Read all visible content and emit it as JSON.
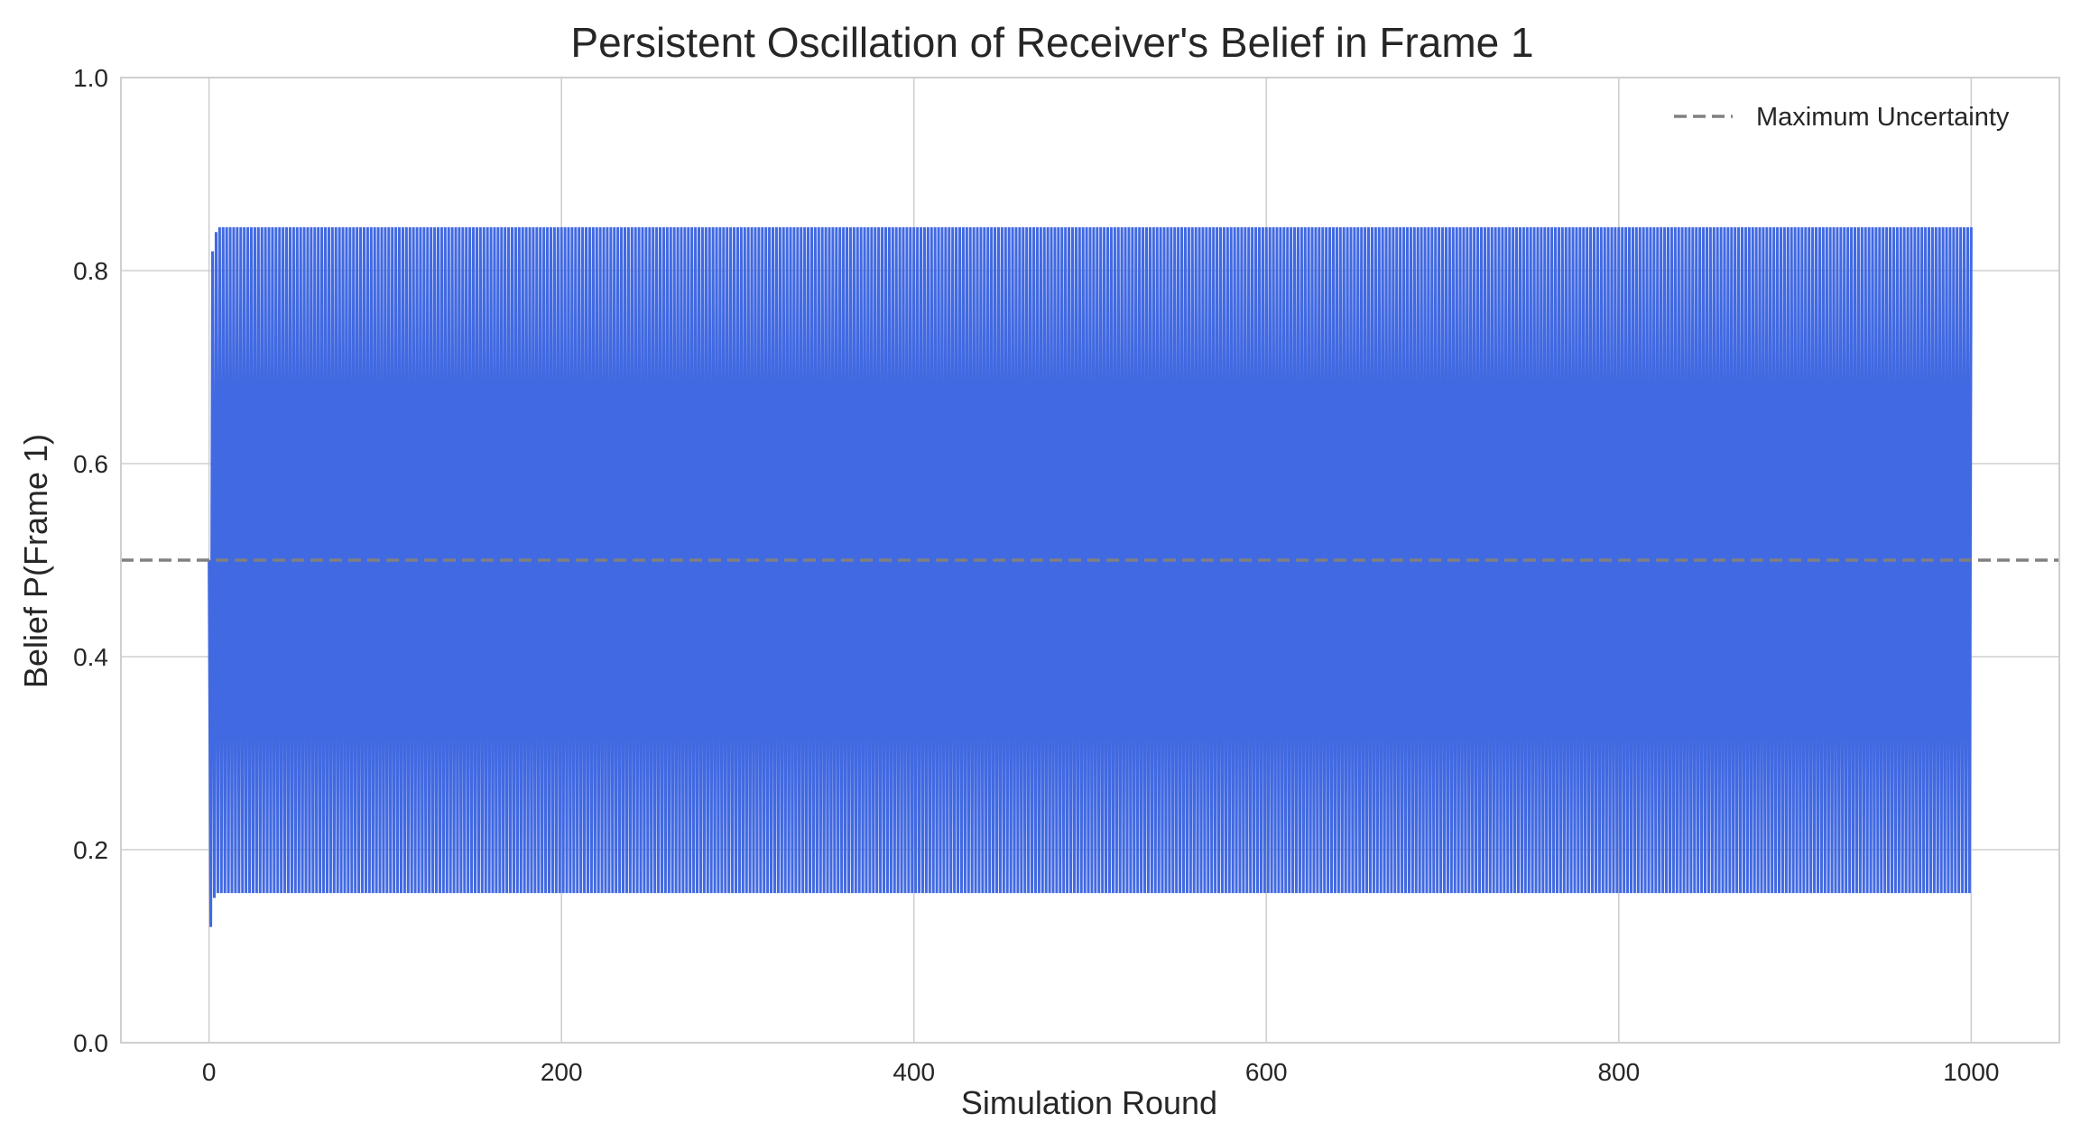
{
  "chart_data": {
    "type": "line",
    "title": "Persistent Oscillation of Receiver's Belief in Frame 1",
    "xlabel": "Simulation Round",
    "ylabel": "Belief P(Frame 1)",
    "xlim": [
      -50,
      1050
    ],
    "ylim": [
      0.0,
      1.0
    ],
    "xticks": [
      0,
      200,
      400,
      600,
      800,
      1000
    ],
    "xtick_labels": [
      "0",
      "200",
      "400",
      "600",
      "800",
      "1000"
    ],
    "yticks": [
      0.0,
      0.2,
      0.4,
      0.6,
      0.8,
      1.0
    ],
    "ytick_labels": [
      "0.0",
      "0.2",
      "0.4",
      "0.6",
      "0.8",
      "1.0"
    ],
    "grid": true,
    "legend_position": "top-right",
    "series": [
      {
        "color": "#4169e1",
        "rounds": [
          0,
          1000
        ],
        "oscillation": {
          "early_points": [
            {
              "x": 0,
              "y": 0.5
            },
            {
              "x": 1,
              "y": 0.12
            },
            {
              "x": 2,
              "y": 0.82
            },
            {
              "x": 3,
              "y": 0.15
            },
            {
              "x": 4,
              "y": 0.84
            },
            {
              "x": 5,
              "y": 0.155
            },
            {
              "x": 6,
              "y": 0.845
            },
            {
              "x": 7,
              "y": 0.155
            }
          ],
          "steady_low": 0.155,
          "steady_high": 0.845
        }
      }
    ],
    "reference_lines": [
      {
        "name": "Maximum Uncertainty",
        "y": 0.5,
        "color": "#808080",
        "style": "dashed"
      }
    ]
  }
}
